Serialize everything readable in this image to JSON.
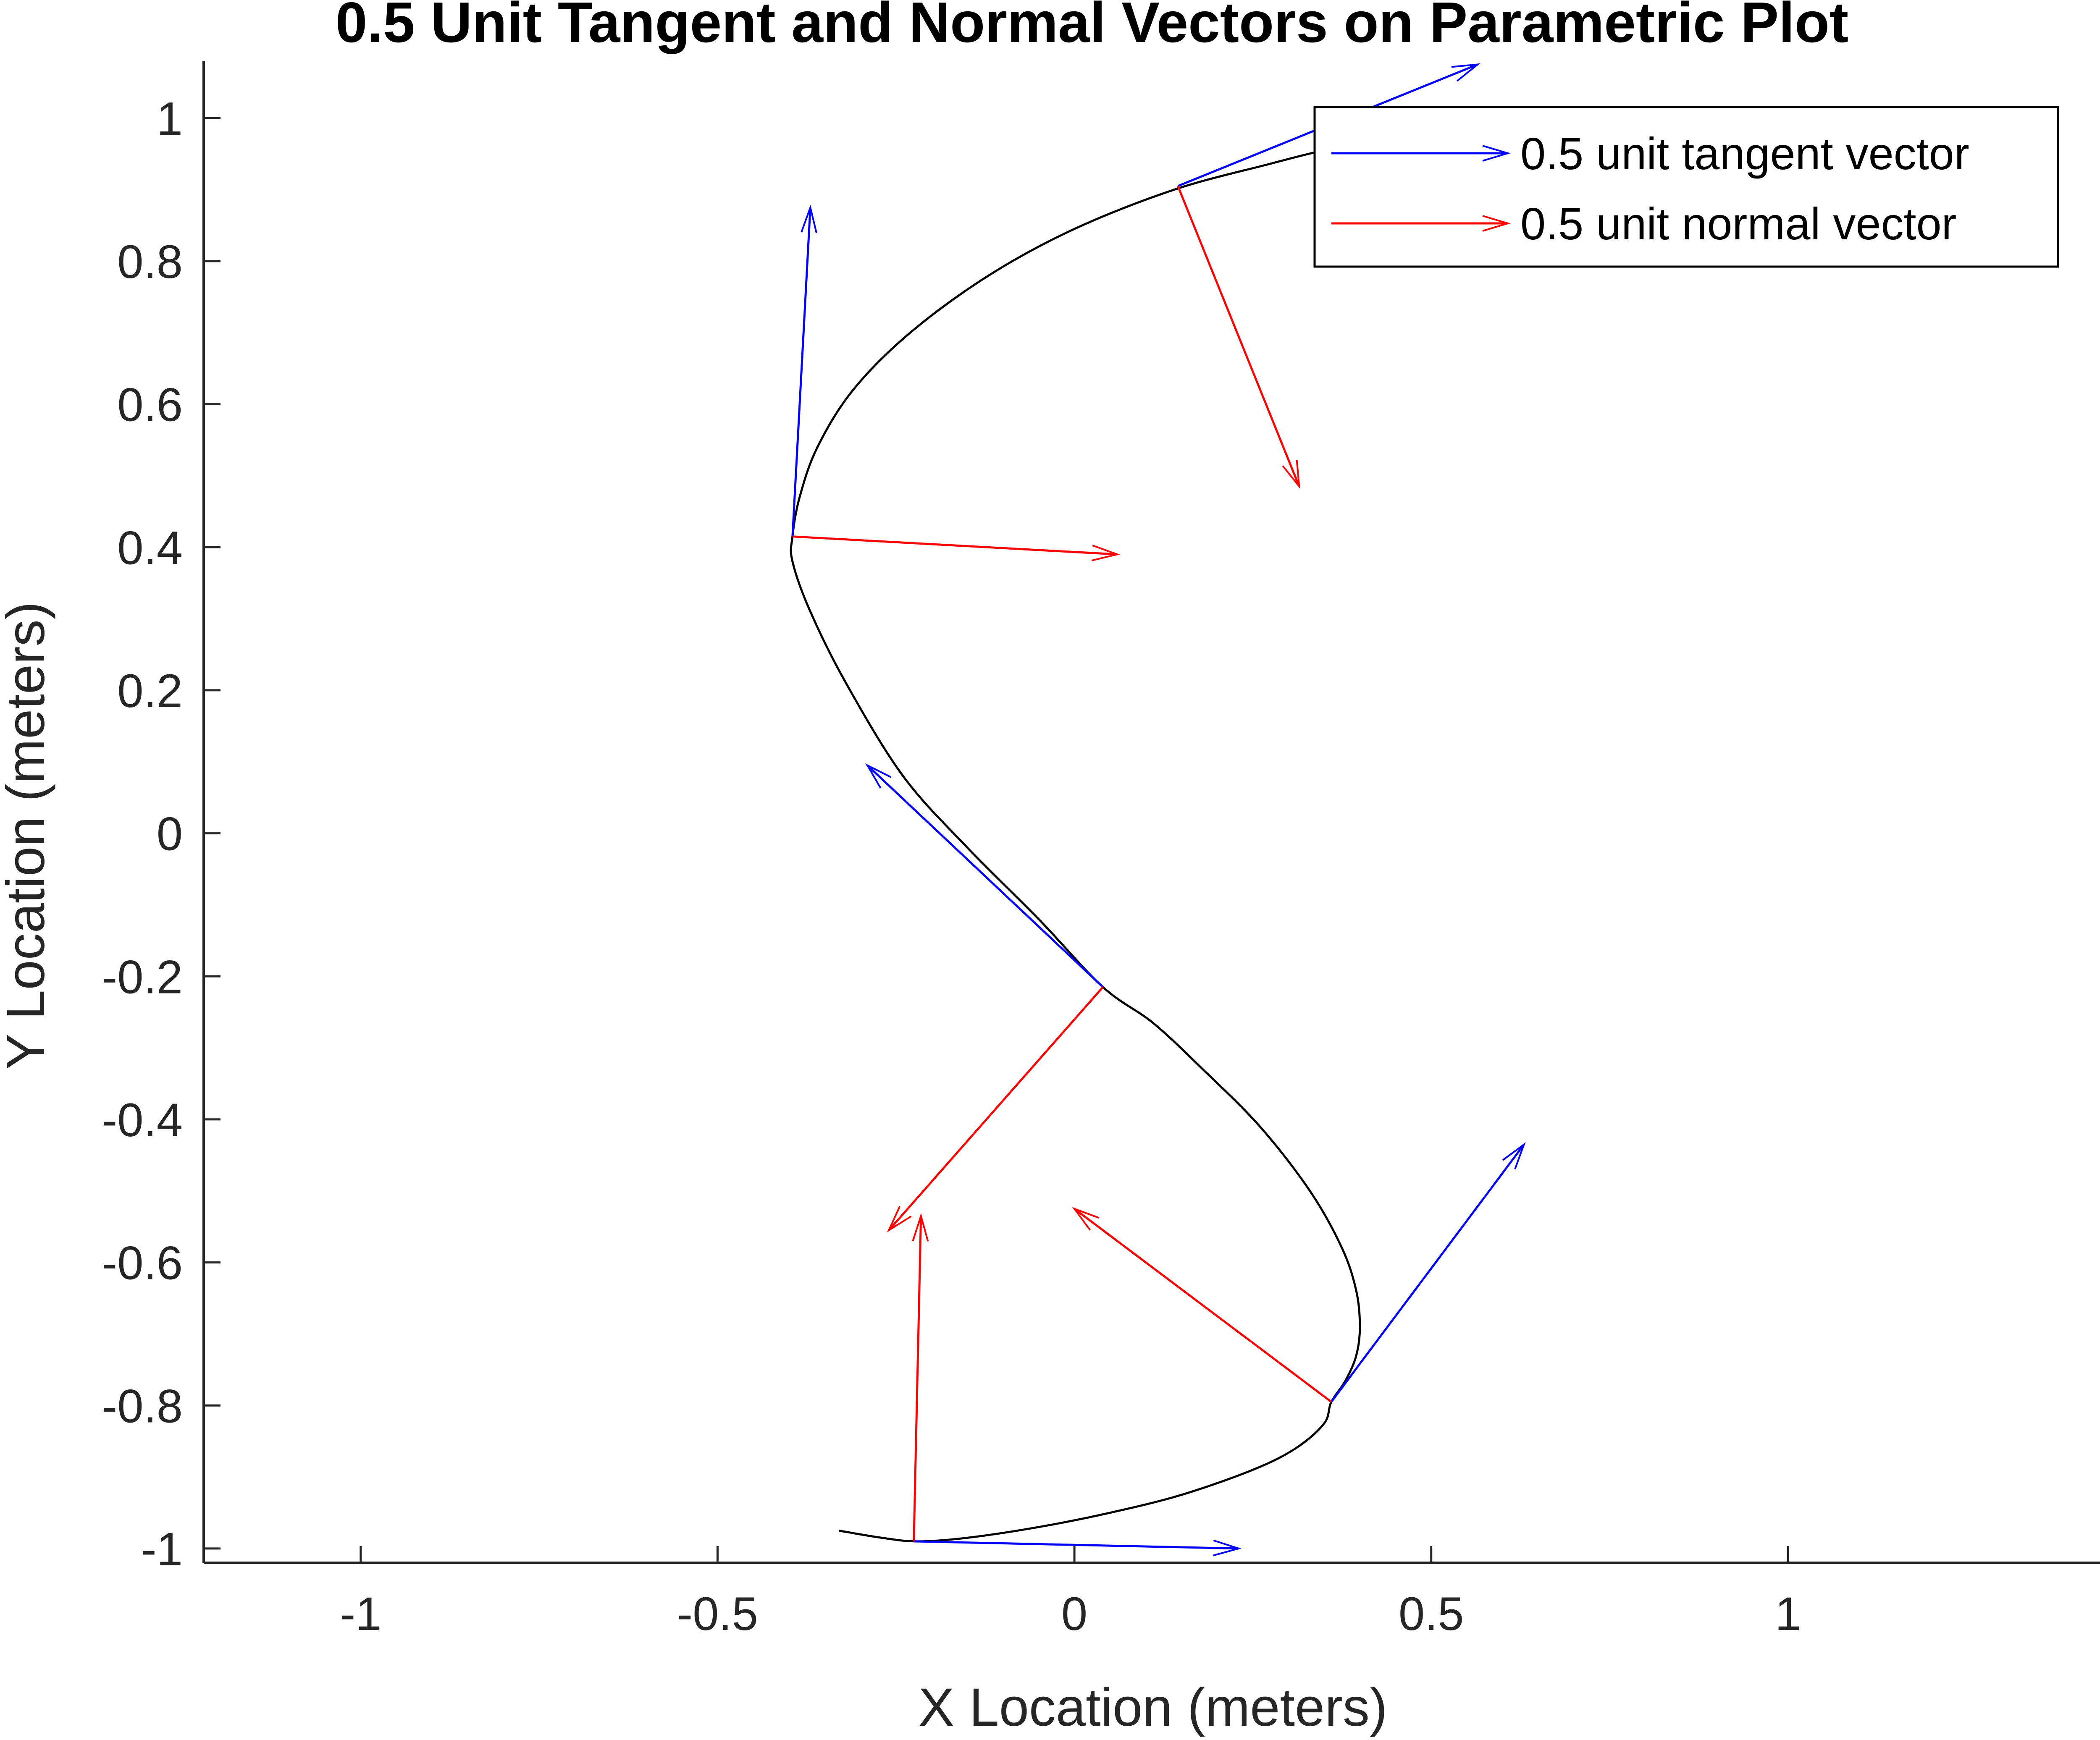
{
  "chart_data": {
    "type": "line",
    "title": "0.5 Unit Tangent and Normal Vectors on Parametric Plot",
    "xlabel": "X Location (meters)",
    "ylabel": "Y Location (meters)",
    "xlim": [
      -1.22,
      1.44
    ],
    "ylim": [
      -1.02,
      1.08
    ],
    "xticks": [
      -1,
      -0.5,
      0,
      0.5,
      1
    ],
    "xtick_labels": [
      "-1",
      "-0.5",
      "0",
      "0.5",
      "1"
    ],
    "yticks": [
      -1,
      -0.8,
      -0.6,
      -0.4,
      -0.2,
      0,
      0.2,
      0.4,
      0.6,
      0.8,
      1
    ],
    "ytick_labels": [
      "-1",
      "-0.8",
      "-0.6",
      "-0.4",
      "-0.2",
      "0",
      "0.2",
      "0.4",
      "0.6",
      "0.8",
      "1"
    ],
    "grid": false,
    "legend_position": "top-right",
    "curve": {
      "color": "#000000",
      "points": [
        [
          -0.33,
          -0.975
        ],
        [
          -0.27,
          -0.985
        ],
        [
          -0.22,
          -0.99
        ],
        [
          -0.15,
          -0.985
        ],
        [
          -0.05,
          -0.97
        ],
        [
          0.05,
          -0.95
        ],
        [
          0.15,
          -0.925
        ],
        [
          0.25,
          -0.89
        ],
        [
          0.31,
          -0.86
        ],
        [
          0.35,
          -0.825
        ],
        [
          0.36,
          -0.795
        ],
        [
          0.38,
          -0.765
        ],
        [
          0.395,
          -0.73
        ],
        [
          0.4,
          -0.69
        ],
        [
          0.395,
          -0.64
        ],
        [
          0.375,
          -0.58
        ],
        [
          0.33,
          -0.5
        ],
        [
          0.26,
          -0.41
        ],
        [
          0.18,
          -0.33
        ],
        [
          0.11,
          -0.265
        ],
        [
          0.04,
          -0.215
        ],
        [
          -0.05,
          -0.12
        ],
        [
          -0.15,
          -0.02
        ],
        [
          -0.24,
          0.08
        ],
        [
          -0.32,
          0.21
        ],
        [
          -0.37,
          0.31
        ],
        [
          -0.395,
          0.38
        ],
        [
          -0.395,
          0.415
        ],
        [
          -0.385,
          0.47
        ],
        [
          -0.36,
          0.54
        ],
        [
          -0.31,
          0.62
        ],
        [
          -0.23,
          0.7
        ],
        [
          -0.12,
          0.78
        ],
        [
          0.0,
          0.845
        ],
        [
          0.14,
          0.9
        ],
        [
          0.27,
          0.935
        ],
        [
          0.35,
          0.955
        ],
        [
          0.41,
          0.965
        ],
        [
          0.44,
          0.97
        ]
      ]
    },
    "series": [
      {
        "name": "0.5 unit tangent vector",
        "color": "#0000ff",
        "vectors": [
          {
            "x": -0.225,
            "y": -0.99,
            "u": 0.455,
            "v": -0.01
          },
          {
            "x": 0.36,
            "y": -0.795,
            "u": 0.27,
            "v": 0.36
          },
          {
            "x": 0.04,
            "y": -0.215,
            "u": -0.33,
            "v": 0.31
          },
          {
            "x": -0.395,
            "y": 0.415,
            "u": 0.025,
            "v": 0.46
          },
          {
            "x": 0.145,
            "y": 0.905,
            "u": 0.42,
            "v": 0.17
          }
        ]
      },
      {
        "name": "0.5 unit normal vector",
        "color": "#ff0000",
        "vectors": [
          {
            "x": -0.225,
            "y": -0.99,
            "u": 0.01,
            "v": 0.455
          },
          {
            "x": 0.36,
            "y": -0.795,
            "u": -0.36,
            "v": 0.27
          },
          {
            "x": 0.04,
            "y": -0.215,
            "u": -0.3,
            "v": -0.34
          },
          {
            "x": -0.395,
            "y": 0.415,
            "u": 0.455,
            "v": -0.025
          },
          {
            "x": 0.145,
            "y": 0.905,
            "u": 0.17,
            "v": -0.42
          }
        ]
      }
    ]
  }
}
